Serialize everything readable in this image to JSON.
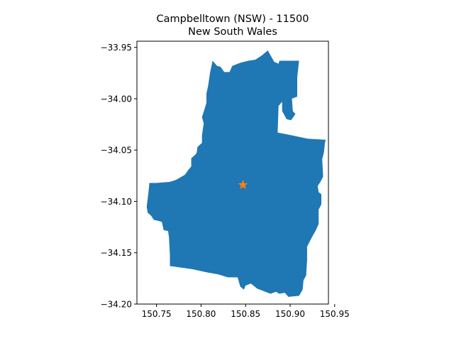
{
  "figure": {
    "title_line1": "Campbelltown (NSW) - 11500",
    "title_line2": "New South Wales"
  },
  "chart_data": {
    "type": "map",
    "title": "Campbelltown (NSW) - 11500\nNew South Wales",
    "xlabel": "",
    "ylabel": "",
    "xlim": [
      150.728,
      150.943
    ],
    "ylim": [
      -34.2,
      -33.944
    ],
    "x_ticks": [
      150.75,
      150.8,
      150.85,
      150.9,
      150.95
    ],
    "x_tick_labels": [
      "150.75",
      "150.80",
      "150.85",
      "150.90",
      "150.95"
    ],
    "y_ticks": [
      -33.95,
      -34.0,
      -34.05,
      -34.1,
      -34.15,
      -34.2
    ],
    "y_tick_labels": [
      "−33.95",
      "−34.00",
      "−34.05",
      "−34.10",
      "−34.15",
      "−34.20"
    ],
    "grid": false,
    "region": {
      "name": "Campbelltown (NSW)",
      "fill_color": "#1f77b4",
      "boundary": [
        [
          150.813,
          -33.963
        ],
        [
          150.818,
          -33.968
        ],
        [
          150.822,
          -33.969
        ],
        [
          150.826,
          -33.974
        ],
        [
          150.832,
          -33.974
        ],
        [
          150.835,
          -33.968
        ],
        [
          150.844,
          -33.965
        ],
        [
          150.853,
          -33.963
        ],
        [
          150.861,
          -33.962
        ],
        [
          150.868,
          -33.958
        ],
        [
          150.875,
          -33.953
        ],
        [
          150.882,
          -33.964
        ],
        [
          150.887,
          -33.966
        ],
        [
          150.888,
          -33.963
        ],
        [
          150.898,
          -33.963
        ],
        [
          150.91,
          -33.963
        ],
        [
          150.908,
          -33.979
        ],
        [
          150.908,
          -33.998
        ],
        [
          150.902,
          -34.0
        ],
        [
          150.903,
          -34.012
        ],
        [
          150.906,
          -34.015
        ],
        [
          150.901,
          -34.021
        ],
        [
          150.896,
          -34.02
        ],
        [
          150.891,
          -34.012
        ],
        [
          150.891,
          -34.003
        ],
        [
          150.887,
          -34.007
        ],
        [
          150.886,
          -34.033
        ],
        [
          150.898,
          -34.035
        ],
        [
          150.92,
          -34.039
        ],
        [
          150.94,
          -34.04
        ],
        [
          150.939,
          -34.043
        ],
        [
          150.938,
          -34.052
        ],
        [
          150.936,
          -34.059
        ],
        [
          150.937,
          -34.076
        ],
        [
          150.934,
          -34.081
        ],
        [
          150.931,
          -34.085
        ],
        [
          150.932,
          -34.091
        ],
        [
          150.935,
          -34.093
        ],
        [
          150.935,
          -34.103
        ],
        [
          150.932,
          -34.108
        ],
        [
          150.932,
          -34.122
        ],
        [
          150.929,
          -34.128
        ],
        [
          150.925,
          -34.134
        ],
        [
          150.919,
          -34.144
        ],
        [
          150.919,
          -34.157
        ],
        [
          150.918,
          -34.172
        ],
        [
          150.915,
          -34.177
        ],
        [
          150.914,
          -34.186
        ],
        [
          150.91,
          -34.192
        ],
        [
          150.898,
          -34.193
        ],
        [
          150.894,
          -34.189
        ],
        [
          150.888,
          -34.19
        ],
        [
          150.884,
          -34.188
        ],
        [
          150.878,
          -34.19
        ],
        [
          150.863,
          -34.185
        ],
        [
          150.856,
          -34.18
        ],
        [
          150.85,
          -34.182
        ],
        [
          150.848,
          -34.186
        ],
        [
          150.844,
          -34.183
        ],
        [
          150.841,
          -34.174
        ],
        [
          150.83,
          -34.174
        ],
        [
          150.819,
          -34.171
        ],
        [
          150.806,
          -34.169
        ],
        [
          150.79,
          -34.166
        ],
        [
          150.765,
          -34.163
        ],
        [
          150.765,
          -34.152
        ],
        [
          150.764,
          -34.135
        ],
        [
          150.763,
          -34.129
        ],
        [
          150.758,
          -34.128
        ],
        [
          150.756,
          -34.12
        ],
        [
          150.752,
          -34.119
        ],
        [
          150.747,
          -34.118
        ],
        [
          150.744,
          -34.114
        ],
        [
          150.74,
          -34.111
        ],
        [
          150.739,
          -34.105
        ],
        [
          150.74,
          -34.098
        ],
        [
          150.741,
          -34.091
        ],
        [
          150.742,
          -34.082
        ],
        [
          150.75,
          -34.082
        ],
        [
          150.765,
          -34.081
        ],
        [
          150.772,
          -34.079
        ],
        [
          150.782,
          -34.074
        ],
        [
          150.786,
          -34.069
        ],
        [
          150.789,
          -34.066
        ],
        [
          150.789,
          -34.058
        ],
        [
          150.793,
          -34.055
        ],
        [
          150.795,
          -34.053
        ],
        [
          150.796,
          -34.047
        ],
        [
          150.801,
          -34.043
        ],
        [
          150.801,
          -34.036
        ],
        [
          150.802,
          -34.03
        ],
        [
          150.803,
          -34.024
        ],
        [
          150.801,
          -34.018
        ],
        [
          150.804,
          -34.01
        ],
        [
          150.806,
          -34.004
        ],
        [
          150.806,
          -33.995
        ],
        [
          150.808,
          -33.987
        ],
        [
          150.81,
          -33.975
        ],
        [
          150.813,
          -33.963
        ]
      ]
    },
    "marker": {
      "x": 150.847,
      "y": -34.084,
      "symbol": "star",
      "color": "#ff7f0e"
    }
  }
}
